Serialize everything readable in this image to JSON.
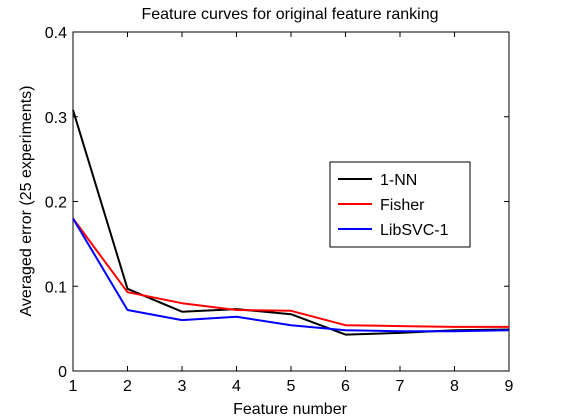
{
  "chart_data": {
    "type": "line",
    "title": "Feature curves for original feature ranking",
    "xlabel": "Feature number",
    "ylabel": "Averaged error (25 experiments)",
    "xlim": [
      1,
      9
    ],
    "ylim": [
      0,
      0.4
    ],
    "xticks": [
      "1",
      "2",
      "3",
      "4",
      "5",
      "6",
      "7",
      "8",
      "9"
    ],
    "yticks": [
      "0",
      "0.1",
      "0.2",
      "0.3",
      "0.4"
    ],
    "x": [
      1,
      2,
      3,
      4,
      5,
      6,
      7,
      8,
      9
    ],
    "grid": false,
    "legend_position": "center-right",
    "series": [
      {
        "name": "1-NN",
        "color": "#000000",
        "values": [
          0.308,
          0.097,
          0.07,
          0.073,
          0.067,
          0.043,
          0.045,
          0.048,
          0.049
        ]
      },
      {
        "name": "Fisher",
        "color": "#ff0000",
        "values": [
          0.18,
          0.093,
          0.08,
          0.072,
          0.071,
          0.054,
          0.053,
          0.052,
          0.052
        ]
      },
      {
        "name": "LibSVC-1",
        "color": "#0000ff",
        "values": [
          0.18,
          0.072,
          0.06,
          0.064,
          0.054,
          0.048,
          0.047,
          0.047,
          0.048
        ]
      }
    ]
  }
}
